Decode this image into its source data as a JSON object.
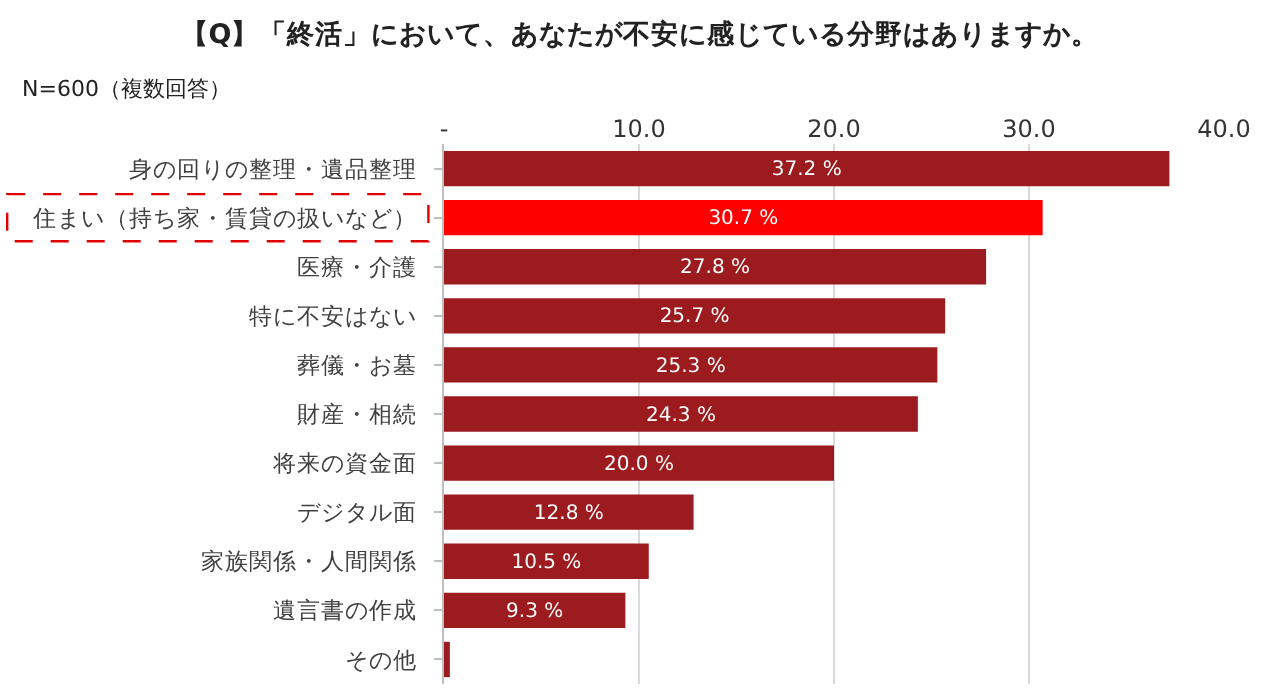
{
  "chart_data": {
    "type": "bar",
    "orientation": "horizontal",
    "title": "【Q】「終活」において、あなたが不安に感じている分野はありますか。",
    "annotations": [
      "N=600（複数回答）"
    ],
    "categories": [
      "身の回りの整理・遺品整理",
      "住まい（持ち家・賃貸の扱いなど）",
      "医療・介護",
      "特に不安はない",
      "葬儀・お墓",
      "財産・相続",
      "将来の資金面",
      "デジタル面",
      "家族関係・人間関係",
      "遺言書の作成",
      "その他"
    ],
    "values": [
      37.2,
      30.7,
      27.8,
      25.7,
      25.3,
      24.3,
      20.0,
      12.8,
      10.5,
      9.3,
      0.3
    ],
    "colors": [
      "#9b1b1f",
      "#ff0000",
      "#9b1b1f",
      "#9b1b1f",
      "#9b1b1f",
      "#9b1b1f",
      "#9b1b1f",
      "#9b1b1f",
      "#9b1b1f",
      "#9b1b1f",
      "#9b1b1f"
    ],
    "value_labels": [
      "37.2 %",
      "30.7 %",
      "27.8 %",
      "25.7 %",
      "25.3 %",
      "24.3 %",
      "20.0 %",
      "12.8 %",
      "10.5 %",
      "9.3 %",
      null
    ],
    "xlim": [
      0,
      40
    ],
    "xticks": [
      {
        "value": 0,
        "label": "-"
      },
      {
        "value": 10,
        "label": "10.0"
      },
      {
        "value": 20,
        "label": "20.0"
      },
      {
        "value": 30,
        "label": "30.0"
      },
      {
        "value": 40,
        "label": "40.0"
      }
    ],
    "grid": "x",
    "legend": false
  }
}
